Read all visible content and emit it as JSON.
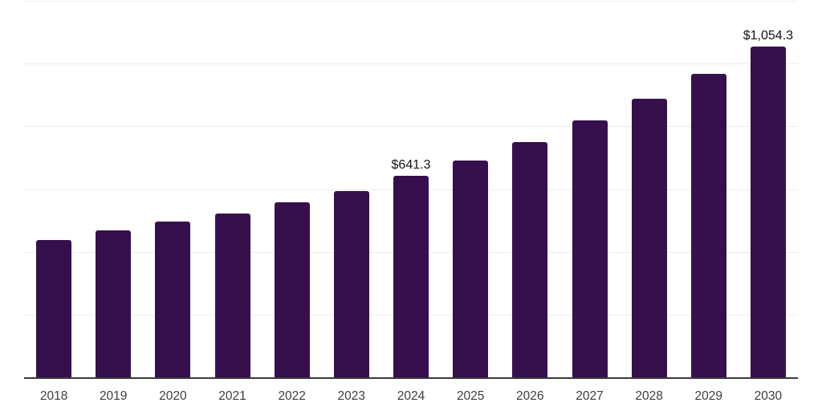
{
  "chart_data": {
    "type": "bar",
    "title": "",
    "xlabel": "",
    "ylabel": "",
    "categories": [
      "2018",
      "2019",
      "2020",
      "2021",
      "2022",
      "2023",
      "2024",
      "2025",
      "2026",
      "2027",
      "2028",
      "2029",
      "2030"
    ],
    "values": [
      437,
      468,
      496,
      521,
      557,
      595,
      641.3,
      692,
      751,
      818,
      889,
      968,
      1054.3
    ],
    "data_labels": [
      "",
      "",
      "",
      "",
      "",
      "",
      "$641.3",
      "",
      "",
      "",
      "",
      "",
      "$1,054.3"
    ],
    "ylim": [
      0,
      1200
    ],
    "gridline_step": 200,
    "grid": "horizontal",
    "legend": "none",
    "colors": {
      "bar": "#36104d",
      "gridline": "#ececec",
      "axis_line": "#3a3a3a",
      "tick_label": "#3d3d3d",
      "data_label": "#121212",
      "background": "#ffffff"
    }
  }
}
